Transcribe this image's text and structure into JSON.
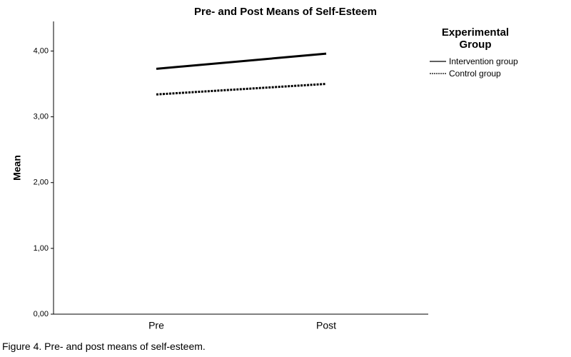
{
  "chart_data": {
    "type": "line",
    "title": "Pre- and Post Means of Self-Esteem",
    "y_label": "Mean",
    "legend_title": "Experimental Group",
    "caption": "Figure 4. Pre- and post means of self-esteem.",
    "categories": [
      "Pre",
      "Post"
    ],
    "series": [
      {
        "name": "Intervention group",
        "color": "#000000",
        "style": "solid",
        "values": [
          3.73,
          3.96
        ]
      },
      {
        "name": "Control group",
        "color": "#000000",
        "style": "dotted",
        "values": [
          3.34,
          3.5
        ]
      }
    ],
    "ylim": [
      0,
      4.45
    ],
    "yticks": [
      {
        "value": 0,
        "label": "0,00"
      },
      {
        "value": 1,
        "label": "1,00"
      },
      {
        "value": 2,
        "label": "2,00"
      },
      {
        "value": 3,
        "label": "3,00"
      },
      {
        "value": 4,
        "label": "4,00"
      }
    ],
    "grid": false,
    "legend": "right"
  }
}
